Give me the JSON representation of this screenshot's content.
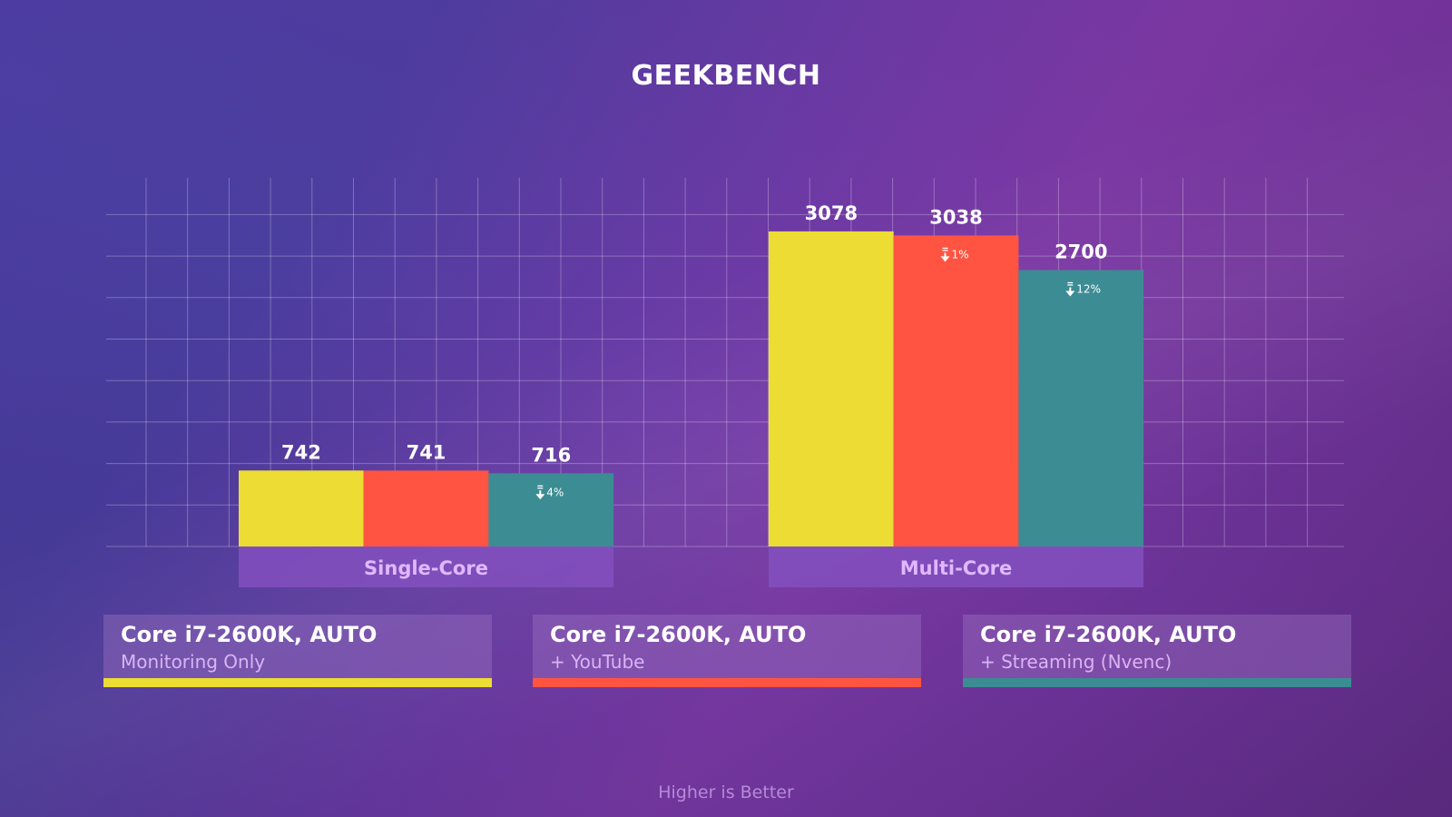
{
  "title": "GEEKBENCH",
  "footer": "Higher is Better",
  "chart_data": {
    "type": "bar",
    "title": "GEEKBENCH",
    "categories": [
      "Single-Core",
      "Multi-Core"
    ],
    "series": [
      {
        "name": "Core i7-2600K, AUTO Monitoring Only",
        "color": "#ecdc33",
        "values": [
          742,
          3078
        ],
        "drop_labels": [
          "",
          ""
        ]
      },
      {
        "name": "Core i7-2600K, AUTO + YouTube",
        "color": "#ff5441",
        "values": [
          741,
          3038
        ],
        "drop_labels": [
          "",
          "1%"
        ]
      },
      {
        "name": "Core i7-2600K, AUTO + Streaming (Nvenc)",
        "color": "#3c8c93",
        "values": [
          716,
          2700
        ],
        "drop_labels": [
          "4%",
          "12%"
        ]
      }
    ],
    "ylim": [
      0,
      3600
    ],
    "grid": true,
    "legend_position": "bottom"
  },
  "legend": [
    {
      "title": "Core i7-2600K, AUTO",
      "subtitle": "Monitoring Only",
      "color": "#ecdc33"
    },
    {
      "title": "Core i7-2600K, AUTO",
      "subtitle": "+ YouTube",
      "color": "#ff5441"
    },
    {
      "title": "Core i7-2600K, AUTO",
      "subtitle": "+ Streaming (Nvenc)",
      "color": "#3c8c93"
    }
  ]
}
